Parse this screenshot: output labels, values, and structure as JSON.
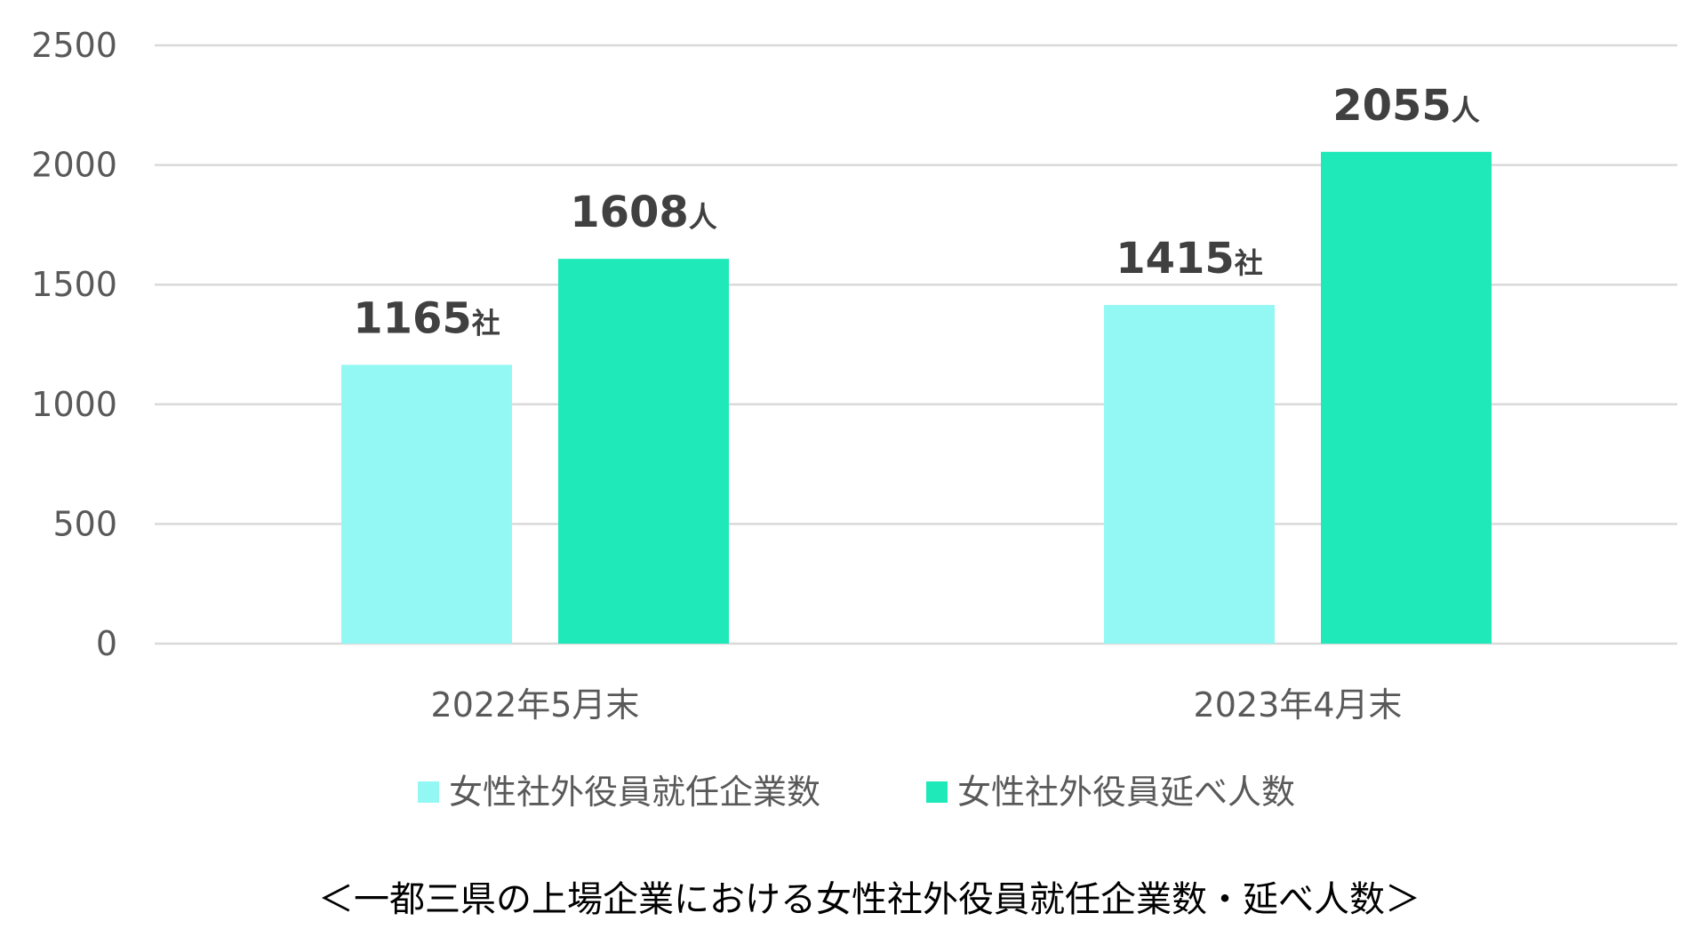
{
  "chart_data": {
    "type": "bar",
    "categories": [
      "2022年5月末",
      "2023年4月末"
    ],
    "series": [
      {
        "name": "女性社外役員就任企業数",
        "values": [
          1165,
          1415
        ],
        "unit": "社",
        "color": "#93f8f4"
      },
      {
        "name": "女性社外役員延べ人数",
        "values": [
          1608,
          2055
        ],
        "unit": "人",
        "color": "#1fe9b9"
      }
    ],
    "ylim": [
      0,
      2500
    ],
    "yticks": [
      0,
      500,
      1000,
      1500,
      2000,
      2500
    ],
    "grid": true,
    "legend_position": "bottom",
    "caption": "＜一都三県の上場企業における女性社外役員就任企業数・延べ人数＞"
  }
}
